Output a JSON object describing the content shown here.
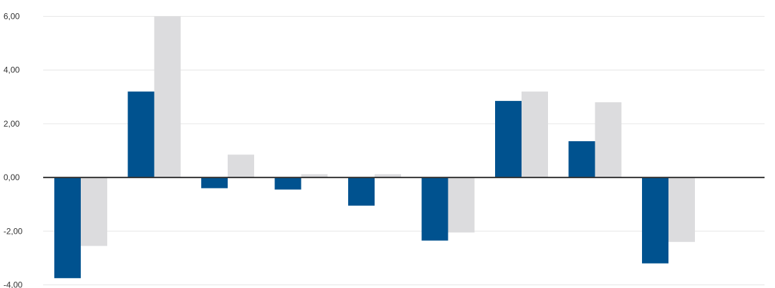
{
  "chart_data": {
    "type": "bar",
    "title": "",
    "xlabel": "",
    "ylabel": "",
    "ylim": [
      -4,
      6
    ],
    "yticks": [
      {
        "value": -4,
        "label": "-4,00"
      },
      {
        "value": -2,
        "label": "-2,00"
      },
      {
        "value": 0,
        "label": "0,00"
      },
      {
        "value": 2,
        "label": "2,00"
      },
      {
        "value": 4,
        "label": "4,00"
      },
      {
        "value": 6,
        "label": "6,00"
      }
    ],
    "grid": true,
    "legend": "none",
    "categories": [
      "",
      "",
      "",
      "",
      "",
      "",
      "",
      "",
      ""
    ],
    "series": [
      {
        "color": "#00528f",
        "values": [
          -3.75,
          3.2,
          -0.4,
          -0.45,
          -1.05,
          -2.35,
          2.85,
          1.35,
          -3.2
        ]
      },
      {
        "color": "#dcdcde",
        "values": [
          -2.55,
          6.0,
          0.85,
          0.12,
          0.12,
          -2.05,
          3.2,
          2.8,
          -2.4
        ]
      }
    ]
  }
}
